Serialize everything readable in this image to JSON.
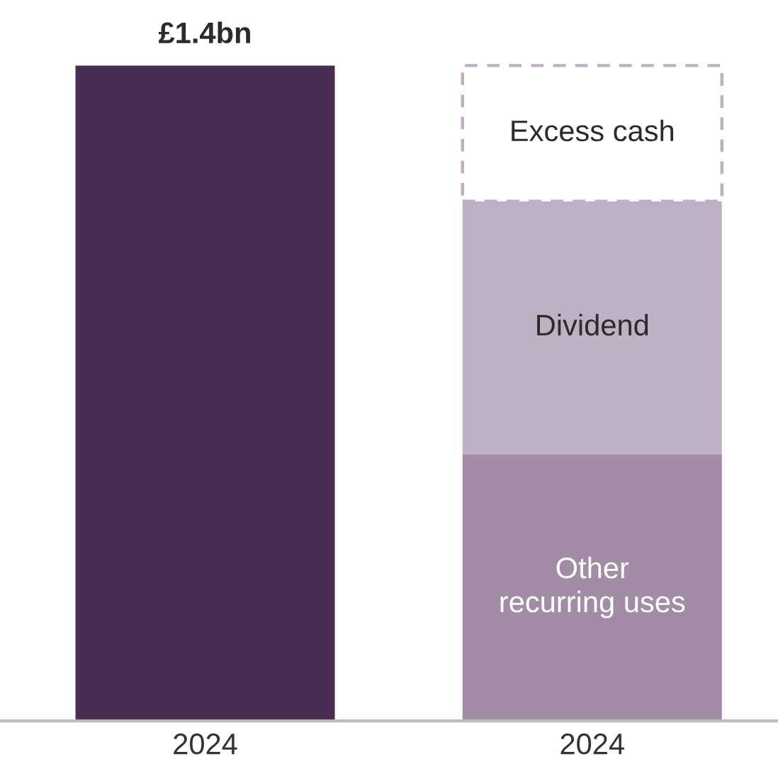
{
  "chart_data": {
    "type": "bar",
    "stacked": true,
    "categories": [
      "2024",
      "2024"
    ],
    "series": [
      {
        "color": "#4a2d53",
        "values": [
          1.4,
          null
        ],
        "value_labels": [
          "£1.4bn",
          null
        ]
      },
      {
        "name": "Other recurring uses",
        "color": "#a38ca6",
        "values": [
          null,
          0.57
        ]
      },
      {
        "name": "Dividend",
        "color": "#c0b0c4",
        "values": [
          null,
          0.54
        ]
      },
      {
        "name": "Excess cash",
        "color": "#ffffff",
        "values": [
          null,
          0.29
        ],
        "line_style": "dashed"
      }
    ],
    "grid": false,
    "legend": false
  }
}
